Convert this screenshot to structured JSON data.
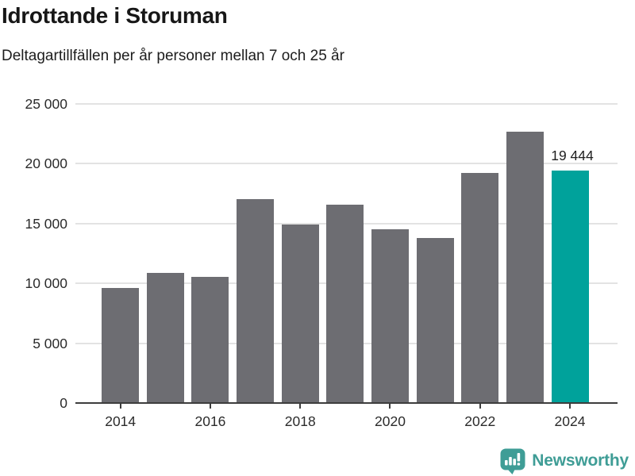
{
  "title": "Idrottande i Storuman",
  "subtitle": "Deltagartillfällen per år personer mellan 7 och 25 år",
  "colors": {
    "bar": "#6d6d72",
    "highlight": "#00a29b",
    "grid": "#e3e3e3",
    "axis": "#3d3d3d",
    "brand": "#3f9d96"
  },
  "chart_data": {
    "type": "bar",
    "title": "Idrottande i Storuman",
    "subtitle": "Deltagartillfällen per år personer mellan 7 och 25 år",
    "categories": [
      "2014",
      "2015",
      "2016",
      "2017",
      "2018",
      "2019",
      "2020",
      "2021",
      "2022",
      "2023",
      "2024"
    ],
    "values": [
      9600,
      10900,
      10550,
      17050,
      14900,
      16600,
      14550,
      13800,
      19200,
      22700,
      19444
    ],
    "highlight_index": 10,
    "annotation": {
      "text": "19 444",
      "index": 10
    },
    "ylim": [
      0,
      25000
    ],
    "grid": true,
    "legend": false,
    "xlabel": "",
    "ylabel": "",
    "y_ticks": [
      {
        "value": 25000,
        "label": "25 000"
      },
      {
        "value": 20000,
        "label": "20 000"
      },
      {
        "value": 15000,
        "label": "15 000"
      },
      {
        "value": 10000,
        "label": "10 000"
      },
      {
        "value": 5000,
        "label": "5 000"
      },
      {
        "value": 0,
        "label": "0"
      }
    ],
    "x_ticks": [
      {
        "label": "2014",
        "index": 0
      },
      {
        "label": "2016",
        "index": 2
      },
      {
        "label": "2018",
        "index": 4
      },
      {
        "label": "2020",
        "index": 6
      },
      {
        "label": "2022",
        "index": 8
      },
      {
        "label": "2024",
        "index": 10
      }
    ]
  },
  "footer": {
    "brand": "Newsworthy",
    "logo_icon": "bar-chart-speech-bubble-icon"
  }
}
